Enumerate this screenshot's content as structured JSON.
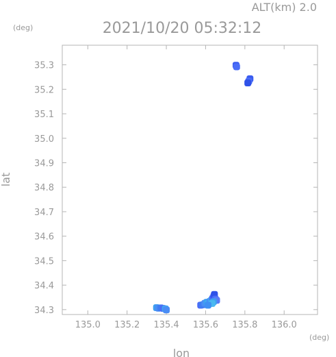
{
  "header": {
    "altitude_label": "ALT(km) 2.0",
    "timestamp": "2021/10/20 05:32:12"
  },
  "chart_data": {
    "type": "scatter",
    "xlabel": "lon",
    "ylabel": "lat",
    "x_unit": "(deg)",
    "y_unit": "(deg)",
    "xlim": [
      134.87,
      136.17
    ],
    "ylim": [
      34.28,
      35.38
    ],
    "xticks": [
      "135.0",
      "135.2",
      "135.4",
      "135.6",
      "135.8",
      "136.0"
    ],
    "yticks": [
      "34.3",
      "34.4",
      "34.5",
      "34.6",
      "34.7",
      "34.8",
      "34.9",
      "35.0",
      "35.1",
      "35.2",
      "35.3"
    ],
    "grid": false,
    "points": [
      {
        "lon": 135.755,
        "lat": 35.298,
        "color": "#3a5cf0"
      },
      {
        "lon": 135.758,
        "lat": 35.292,
        "color": "#4a6df7"
      },
      {
        "lon": 135.826,
        "lat": 35.243,
        "color": "#3a5cf0"
      },
      {
        "lon": 135.82,
        "lat": 35.233,
        "color": "#4a6df7"
      },
      {
        "lon": 135.815,
        "lat": 35.226,
        "color": "#2f52e8"
      },
      {
        "lon": 135.35,
        "lat": 34.308,
        "color": "#3fa0f0"
      },
      {
        "lon": 135.36,
        "lat": 34.306,
        "color": "#4a8df5"
      },
      {
        "lon": 135.372,
        "lat": 34.307,
        "color": "#3f7df2"
      },
      {
        "lon": 135.384,
        "lat": 34.305,
        "color": "#4a6df7"
      },
      {
        "lon": 135.395,
        "lat": 34.303,
        "color": "#3fa8f0"
      },
      {
        "lon": 135.4,
        "lat": 34.299,
        "color": "#4a8df5"
      },
      {
        "lon": 135.575,
        "lat": 34.318,
        "color": "#4a6df7"
      },
      {
        "lon": 135.585,
        "lat": 34.32,
        "color": "#3f7df2"
      },
      {
        "lon": 135.596,
        "lat": 34.326,
        "color": "#4a8df5"
      },
      {
        "lon": 135.606,
        "lat": 34.33,
        "color": "#3fa0f0"
      },
      {
        "lon": 135.615,
        "lat": 34.327,
        "color": "#3fb0f0"
      },
      {
        "lon": 135.622,
        "lat": 34.334,
        "color": "#4a8df5"
      },
      {
        "lon": 135.63,
        "lat": 34.339,
        "color": "#3fa8f0"
      },
      {
        "lon": 135.636,
        "lat": 34.346,
        "color": "#4a6df7"
      },
      {
        "lon": 135.642,
        "lat": 34.355,
        "color": "#3a5cf0"
      },
      {
        "lon": 135.645,
        "lat": 34.362,
        "color": "#2f52e8"
      },
      {
        "lon": 135.65,
        "lat": 34.343,
        "color": "#4a6df7"
      },
      {
        "lon": 135.656,
        "lat": 34.338,
        "color": "#5a7cf7"
      },
      {
        "lon": 135.64,
        "lat": 34.332,
        "color": "#3fa0f0"
      },
      {
        "lon": 135.633,
        "lat": 34.325,
        "color": "#4ab8f0"
      },
      {
        "lon": 135.612,
        "lat": 34.318,
        "color": "#3f90f3"
      }
    ]
  }
}
